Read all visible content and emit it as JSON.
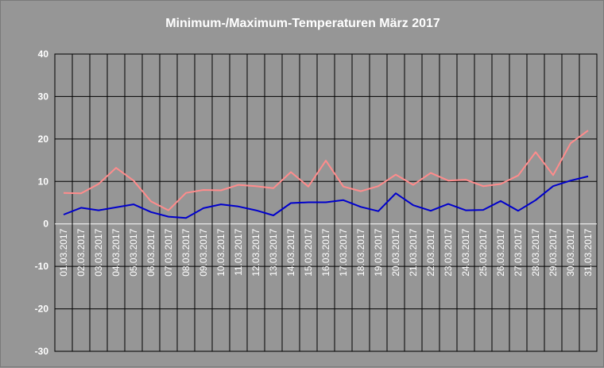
{
  "chart_data": {
    "type": "line",
    "title": "Minimum-/Maximum-Temperaturen März 2017",
    "xlabel": "",
    "ylabel": "",
    "ylim": [
      -30,
      40
    ],
    "yticks": [
      40,
      30,
      20,
      10,
      0,
      -10,
      -20,
      -30
    ],
    "grid": true,
    "legend": "none",
    "categories": [
      "01.03.2017",
      "02.03.2017",
      "03.03.2017",
      "04.03.2017",
      "05.03.2017",
      "06.03.2017",
      "07.03.2017",
      "08.03.2017",
      "09.03.2017",
      "10.03.2017",
      "11.03.2017",
      "12.03.2017",
      "13.03.2017",
      "14.03.2017",
      "15.03.2017",
      "16.03.2017",
      "17.03.2017",
      "18.03.2017",
      "19.03.2017",
      "20.03.2017",
      "21.03.2017",
      "22.03.2017",
      "23.03.2017",
      "24.03.2017",
      "25.03.2017",
      "26.03.2017",
      "27.03.2017",
      "28.03.2017",
      "29.03.2017",
      "30.03.2017",
      "31.03.2017"
    ],
    "series": [
      {
        "color": "#ff8c8c",
        "values": [
          7.3,
          7.2,
          9.4,
          13.2,
          10.2,
          5.3,
          3.2,
          7.3,
          8.0,
          7.9,
          9.2,
          8.9,
          8.4,
          12.2,
          8.8,
          14.9,
          8.8,
          7.7,
          8.9,
          11.6,
          9.2,
          12.0,
          10.2,
          10.4,
          8.9,
          9.4,
          11.4,
          16.9,
          11.5,
          19.0,
          22.0
        ]
      },
      {
        "color": "#0000cc",
        "values": [
          2.2,
          3.8,
          3.2,
          3.9,
          4.6,
          2.8,
          1.7,
          1.4,
          3.7,
          4.6,
          4.1,
          3.2,
          2.0,
          4.9,
          5.1,
          5.1,
          5.6,
          4.0,
          3.0,
          7.2,
          4.4,
          3.1,
          4.7,
          3.2,
          3.3,
          5.4,
          3.1,
          5.6,
          8.9,
          10.2,
          11.2
        ]
      }
    ]
  }
}
